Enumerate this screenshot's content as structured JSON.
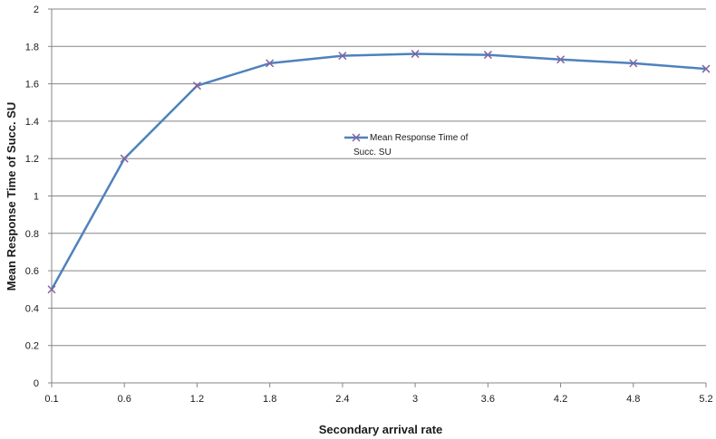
{
  "chart_data": {
    "type": "line",
    "title": "",
    "xlabel": "Secondary arrival rate",
    "ylabel": "Mean Response Time of Succ. SU",
    "x": [
      "0.1",
      "0.6",
      "1.2",
      "1.8",
      "2.4",
      "3",
      "3.6",
      "4.2",
      "4.8",
      "5.2"
    ],
    "ylim": [
      0,
      2
    ],
    "yticks": [
      "0",
      "0.2",
      "0.4",
      "0.6",
      "0.8",
      "1",
      "1.2",
      "1.4",
      "1.6",
      "1.8",
      "2"
    ],
    "grid": true,
    "legend_position": "center-right",
    "series": [
      {
        "name": "Mean Response Time of Succ. SU",
        "legend_lines": [
          "Mean Response Time of",
          "Succ. SU"
        ],
        "values": [
          0.5,
          1.2,
          1.59,
          1.71,
          1.75,
          1.76,
          1.755,
          1.73,
          1.71,
          1.68
        ],
        "line_color": "#4f81bd",
        "marker": "x",
        "marker_color": "#8064a2"
      }
    ]
  }
}
